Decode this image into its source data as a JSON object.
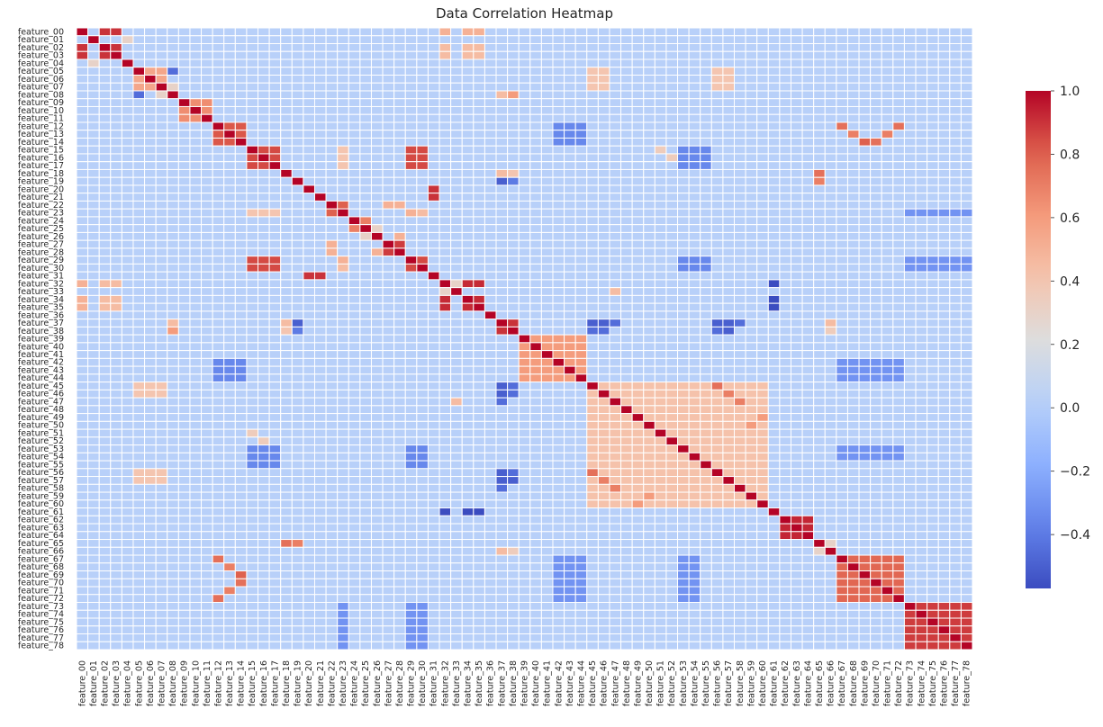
{
  "chart_data": {
    "type": "heatmap",
    "title": "Data Correlation Heatmap",
    "features": [
      "feature_00",
      "feature_01",
      "feature_02",
      "feature_03",
      "feature_04",
      "feature_05",
      "feature_06",
      "feature_07",
      "feature_08",
      "feature_09",
      "feature_10",
      "feature_11",
      "feature_12",
      "feature_13",
      "feature_14",
      "feature_15",
      "feature_16",
      "feature_17",
      "feature_18",
      "feature_19",
      "feature_20",
      "feature_21",
      "feature_22",
      "feature_23",
      "feature_24",
      "feature_25",
      "feature_26",
      "feature_27",
      "feature_28",
      "feature_29",
      "feature_30",
      "feature_31",
      "feature_32",
      "feature_33",
      "feature_34",
      "feature_35",
      "feature_36",
      "feature_37",
      "feature_38",
      "feature_39",
      "feature_40",
      "feature_41",
      "feature_42",
      "feature_43",
      "feature_44",
      "feature_45",
      "feature_46",
      "feature_47",
      "feature_48",
      "feature_49",
      "feature_50",
      "feature_51",
      "feature_52",
      "feature_53",
      "feature_54",
      "feature_55",
      "feature_56",
      "feature_57",
      "feature_58",
      "feature_59",
      "feature_60",
      "feature_61",
      "feature_62",
      "feature_63",
      "feature_64",
      "feature_65",
      "feature_66",
      "feature_67",
      "feature_68",
      "feature_69",
      "feature_70",
      "feature_71",
      "feature_72",
      "feature_73",
      "feature_74",
      "feature_75",
      "feature_76",
      "feature_77",
      "feature_78"
    ],
    "colorbar": {
      "min": -0.57,
      "max": 1.0,
      "ticks": [
        -0.4,
        -0.2,
        0.0,
        0.2,
        0.4,
        0.6,
        0.8,
        1.0
      ],
      "tick_labels": [
        "−0.4",
        "−0.2",
        "0.0",
        "0.2",
        "0.4",
        "0.6",
        "0.8",
        "1.0"
      ],
      "colormap": "coolwarm"
    },
    "base_correlation": 0.02,
    "strong_blocks": [
      {
        "features": [
          0,
          2,
          3
        ],
        "value": 0.9
      },
      {
        "features": [
          12,
          13,
          14
        ],
        "value": 0.82
      },
      {
        "features": [
          15,
          16,
          17,
          29,
          30
        ],
        "value": 0.85
      },
      {
        "features": [
          27,
          28
        ],
        "value": 0.88
      },
      {
        "features": [
          32,
          34,
          35
        ],
        "value": 0.92
      },
      {
        "features": [
          37,
          38
        ],
        "value": 0.9
      },
      {
        "features": [
          62,
          63,
          64
        ],
        "value": 0.93
      },
      {
        "features": [
          67,
          68,
          69,
          70,
          71,
          72
        ],
        "value": 0.78
      },
      {
        "features": [
          73,
          74,
          75,
          76,
          77,
          78
        ],
        "value": 0.88
      }
    ],
    "moderate_groups": [
      {
        "features": [
          39,
          40,
          41,
          42,
          43,
          44
        ],
        "value": 0.6
      },
      {
        "features": [
          45,
          46,
          47,
          48,
          49,
          50,
          51,
          52,
          53,
          54,
          55,
          56,
          57,
          58,
          59,
          60
        ],
        "value": 0.42
      },
      {
        "features": [
          5,
          6,
          7
        ],
        "value": 0.55
      },
      {
        "features": [
          9,
          10,
          11
        ],
        "value": 0.65
      }
    ],
    "pairs": [
      {
        "i": 0,
        "j": 32,
        "value": 0.5
      },
      {
        "i": 0,
        "j": 34,
        "value": 0.5
      },
      {
        "i": 0,
        "j": 35,
        "value": 0.5
      },
      {
        "i": 2,
        "j": 32,
        "value": 0.45
      },
      {
        "i": 2,
        "j": 34,
        "value": 0.45
      },
      {
        "i": 2,
        "j": 35,
        "value": 0.45
      },
      {
        "i": 3,
        "j": 32,
        "value": 0.45
      },
      {
        "i": 3,
        "j": 34,
        "value": 0.45
      },
      {
        "i": 3,
        "j": 35,
        "value": 0.45
      },
      {
        "i": 1,
        "j": 4,
        "value": 0.3
      },
      {
        "i": 5,
        "j": 8,
        "value": -0.45
      },
      {
        "i": 7,
        "j": 8,
        "value": 0.3
      },
      {
        "i": 8,
        "j": 37,
        "value": 0.45
      },
      {
        "i": 8,
        "j": 38,
        "value": 0.6
      },
      {
        "i": 18,
        "j": 37,
        "value": 0.45
      },
      {
        "i": 18,
        "j": 38,
        "value": 0.4
      },
      {
        "i": 18,
        "j": 65,
        "value": 0.75
      },
      {
        "i": 19,
        "j": 65,
        "value": 0.7
      },
      {
        "i": 19,
        "j": 37,
        "value": -0.5
      },
      {
        "i": 19,
        "j": 38,
        "value": -0.4
      },
      {
        "i": 20,
        "j": 31,
        "value": 0.9
      },
      {
        "i": 21,
        "j": 31,
        "value": 0.9
      },
      {
        "i": 22,
        "j": 23,
        "value": 0.8
      },
      {
        "i": 22,
        "j": 27,
        "value": 0.5
      },
      {
        "i": 22,
        "j": 28,
        "value": 0.5
      },
      {
        "i": 23,
        "j": 15,
        "value": 0.4
      },
      {
        "i": 23,
        "j": 16,
        "value": 0.4
      },
      {
        "i": 23,
        "j": 17,
        "value": 0.4
      },
      {
        "i": 23,
        "j": 29,
        "value": 0.5
      },
      {
        "i": 23,
        "j": 30,
        "value": 0.45
      },
      {
        "i": 24,
        "j": 25,
        "value": 0.7
      },
      {
        "i": 25,
        "j": 26,
        "value": 0.3
      },
      {
        "i": 26,
        "j": 28,
        "value": 0.5
      },
      {
        "i": 33,
        "j": 32,
        "value": 0.3
      },
      {
        "i": 33,
        "j": 47,
        "value": 0.45
      },
      {
        "i": 32,
        "j": 61,
        "value": -0.57
      },
      {
        "i": 34,
        "j": 61,
        "value": -0.57
      },
      {
        "i": 35,
        "j": 61,
        "value": -0.57
      },
      {
        "i": 37,
        "j": 45,
        "value": -0.5
      },
      {
        "i": 37,
        "j": 46,
        "value": -0.5
      },
      {
        "i": 37,
        "j": 47,
        "value": -0.45
      },
      {
        "i": 38,
        "j": 45,
        "value": -0.45
      },
      {
        "i": 38,
        "j": 46,
        "value": -0.45
      },
      {
        "i": 37,
        "j": 56,
        "value": -0.5
      },
      {
        "i": 37,
        "j": 57,
        "value": -0.5
      },
      {
        "i": 37,
        "j": 58,
        "value": -0.45
      },
      {
        "i": 38,
        "j": 56,
        "value": -0.45
      },
      {
        "i": 38,
        "j": 57,
        "value": -0.5
      },
      {
        "i": 37,
        "j": 66,
        "value": 0.45
      },
      {
        "i": 38,
        "j": 66,
        "value": 0.35
      },
      {
        "i": 65,
        "j": 66,
        "value": 0.3
      },
      {
        "i": 12,
        "j": 72,
        "value": 0.75
      },
      {
        "i": 13,
        "j": 71,
        "value": 0.7
      },
      {
        "i": 14,
        "j": 70,
        "value": 0.75
      },
      {
        "i": 12,
        "j": 67,
        "value": 0.75
      },
      {
        "i": 13,
        "j": 68,
        "value": 0.7
      },
      {
        "i": 14,
        "j": 69,
        "value": 0.8
      },
      {
        "i": 15,
        "j": 51,
        "value": 0.35
      },
      {
        "i": 16,
        "j": 52,
        "value": 0.35
      },
      {
        "i": 45,
        "j": 56,
        "value": 0.75
      },
      {
        "i": 46,
        "j": 57,
        "value": 0.7
      },
      {
        "i": 47,
        "j": 58,
        "value": 0.7
      },
      {
        "i": 49,
        "j": 60,
        "value": 0.6
      },
      {
        "i": 50,
        "j": 59,
        "value": 0.6
      }
    ],
    "negative_rows": [
      {
        "features": [
          53,
          54,
          55
        ],
        "with": [
          15,
          16,
          17,
          29,
          30
        ],
        "value": -0.35
      },
      {
        "features": [
          67,
          68,
          69,
          70,
          71,
          72
        ],
        "with": [
          42,
          43,
          44,
          53,
          54
        ],
        "value": -0.3
      },
      {
        "features": [
          73,
          74,
          75,
          76,
          77,
          78
        ],
        "with": [
          23,
          29,
          30
        ],
        "value": -0.3
      },
      {
        "features": [
          5,
          6,
          7
        ],
        "with": [
          45,
          46,
          56,
          57
        ],
        "value": 0.4
      },
      {
        "features": [
          12,
          13,
          14
        ],
        "with": [
          42,
          43,
          44
        ],
        "value": -0.35
      }
    ]
  }
}
